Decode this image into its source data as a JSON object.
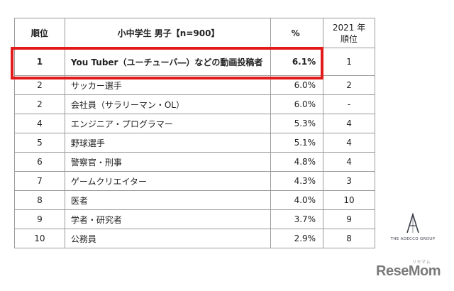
{
  "table": {
    "headers": {
      "rank": "順位",
      "job": "小中学生 男子【n=900】",
      "percent": "%",
      "prev_year": "2021 年",
      "prev_rank": "順位"
    },
    "rows": [
      {
        "rank": "1",
        "job": "You Tuber（ユーチューバ―）などの動画投稿者",
        "percent": "6.1%",
        "prev": "1"
      },
      {
        "rank": "2",
        "job": "サッカー選手",
        "percent": "6.0%",
        "prev": "2"
      },
      {
        "rank": "2",
        "job": "会社員（サラリーマン・OL）",
        "percent": "6.0%",
        "prev": "-"
      },
      {
        "rank": "4",
        "job": "エンジニア・プログラマー",
        "percent": "5.3%",
        "prev": "4"
      },
      {
        "rank": "5",
        "job": "野球選手",
        "percent": "5.1%",
        "prev": "4"
      },
      {
        "rank": "6",
        "job": "警察官・刑事",
        "percent": "4.8%",
        "prev": "4"
      },
      {
        "rank": "7",
        "job": "ゲームクリエイター",
        "percent": "4.3%",
        "prev": "3"
      },
      {
        "rank": "8",
        "job": "医者",
        "percent": "4.0%",
        "prev": "10"
      },
      {
        "rank": "9",
        "job": "学者・研究者",
        "percent": "3.7%",
        "prev": "9"
      },
      {
        "rank": "10",
        "job": "公務員",
        "percent": "2.9%",
        "prev": "8"
      }
    ]
  },
  "logos": {
    "adecco": "THE ADECCO GROUP",
    "resemom": "ReseMom",
    "resemom_ruby": "リセマム"
  },
  "colors": {
    "highlight": "#e21a1a",
    "border": "#9a9a9a"
  }
}
